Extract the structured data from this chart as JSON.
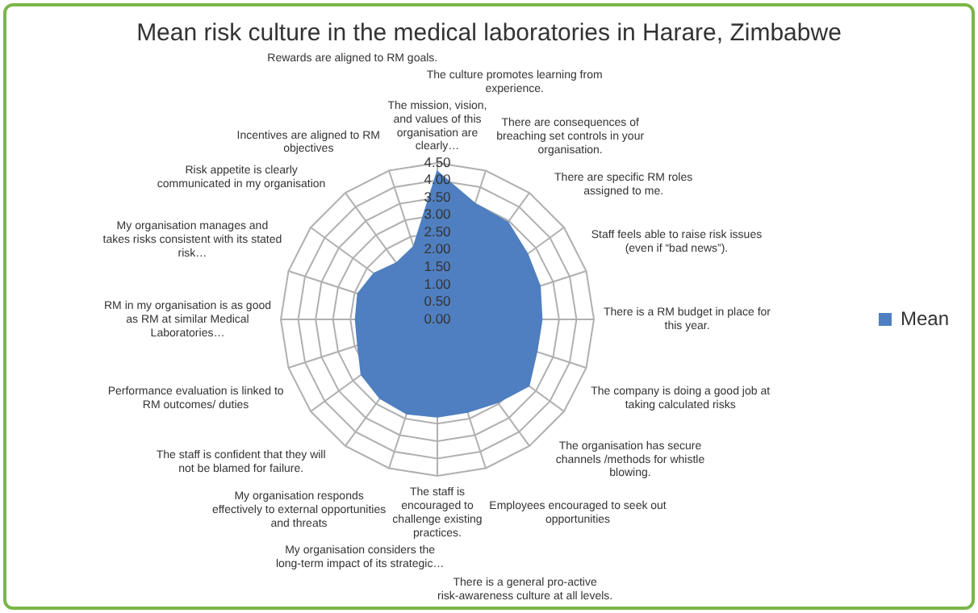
{
  "chart_data": {
    "type": "radar",
    "title": "Mean risk culture in the medical laboratories in Harare, Zimbabwe",
    "categories": [
      "The mission, vision, and values of this organisation are clearly…",
      "The culture promotes learning from experience.",
      "There are consequences of breaching set controls in your organisation.",
      "There are specific RM roles assigned to me.",
      "Staff feels able to raise risk issues (even if “bad news”).",
      "There is a RM budget in place for this year.",
      "The company is doing a good job at taking calculated risks",
      "The organisation has secure channels /methods for whistle blowing.",
      "Employees encouraged to seek out opportunities",
      "There is a general pro-active risk-awareness culture at all levels.",
      "The staff is encouraged to challenge existing practices.",
      "My organisation considers the long-term impact of its strategic…",
      "My organisation responds effectively to external opportunities and threats",
      "The staff is confident that they will not be blamed for failure.",
      "Performance evaluation is linked to RM outcomes/ duties",
      "RM in my organisation is as good as RM at similar Medical Laboratories…",
      "My organisation manages and takes risks consistent with its stated risk…",
      "Risk appetite is clearly communicated in my organisation",
      "Incentives are aligned to RM objectives",
      "Rewards are aligned to RM goals."
    ],
    "series": [
      {
        "name": "Mean",
        "color": "#4f7fc0",
        "values": [
          4.25,
          3.5,
          3.45,
          3.2,
          3.1,
          3.0,
          3.0,
          3.25,
          2.95,
          2.8,
          2.8,
          2.85,
          2.8,
          2.7,
          2.4,
          2.35,
          2.4,
          2.25,
          2.0,
          2.2
        ]
      }
    ],
    "ylim": [
      0,
      4.5
    ],
    "yticks": [
      {
        "value": 0,
        "label": "0.00"
      },
      {
        "value": 0.5,
        "label": "0.50"
      },
      {
        "value": 1,
        "label": "1.00"
      },
      {
        "value": 1.5,
        "label": "1.50"
      },
      {
        "value": 2,
        "label": "2.00"
      },
      {
        "value": 2.5,
        "label": "2.50"
      },
      {
        "value": 3,
        "label": "3.00"
      },
      {
        "value": 3.5,
        "label": "3.50"
      },
      {
        "value": 4,
        "label": "4.00"
      },
      {
        "value": 4.5,
        "label": "4.50"
      }
    ],
    "grid": true,
    "legend": "right"
  }
}
